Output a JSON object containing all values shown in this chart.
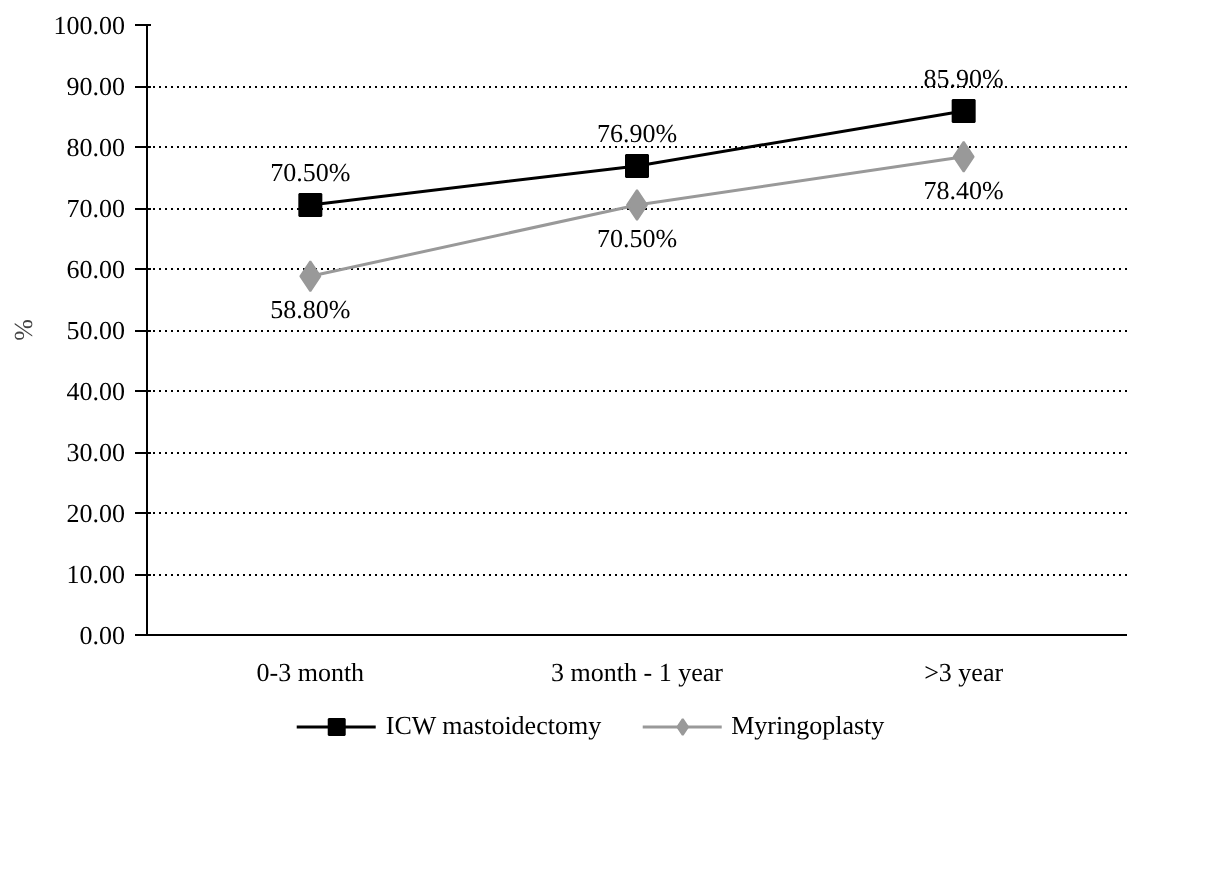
{
  "chart_data": {
    "type": "line",
    "ylabel": "%",
    "categories": [
      "0-3 month",
      "3 month - 1 year",
      ">3 year"
    ],
    "series": [
      {
        "name": "ICW mastoidectomy",
        "color": "#000000",
        "marker": "square",
        "values": [
          70.5,
          76.9,
          85.9
        ],
        "value_labels": [
          "70.50%",
          "76.90%",
          "85.90%"
        ]
      },
      {
        "name": "Myringoplasty",
        "color": "#999999",
        "marker": "diamond",
        "values": [
          58.8,
          70.5,
          78.4
        ],
        "value_labels": [
          "58.80%",
          "70.50%",
          "78.40%"
        ]
      }
    ],
    "ylim": [
      0,
      100
    ],
    "yticks": [
      {
        "value": 0,
        "label": "0.00"
      },
      {
        "value": 10,
        "label": "10.00"
      },
      {
        "value": 20,
        "label": "20.00"
      },
      {
        "value": 30,
        "label": "30.00"
      },
      {
        "value": 40,
        "label": "40.00"
      },
      {
        "value": 50,
        "label": "50.00"
      },
      {
        "value": 60,
        "label": "60.00"
      },
      {
        "value": 70,
        "label": "70.00"
      },
      {
        "value": 80,
        "label": "80.00"
      },
      {
        "value": 90,
        "label": "90.00"
      },
      {
        "value": 100,
        "label": "100.00"
      }
    ],
    "grid": "y",
    "legend": "bottom"
  }
}
